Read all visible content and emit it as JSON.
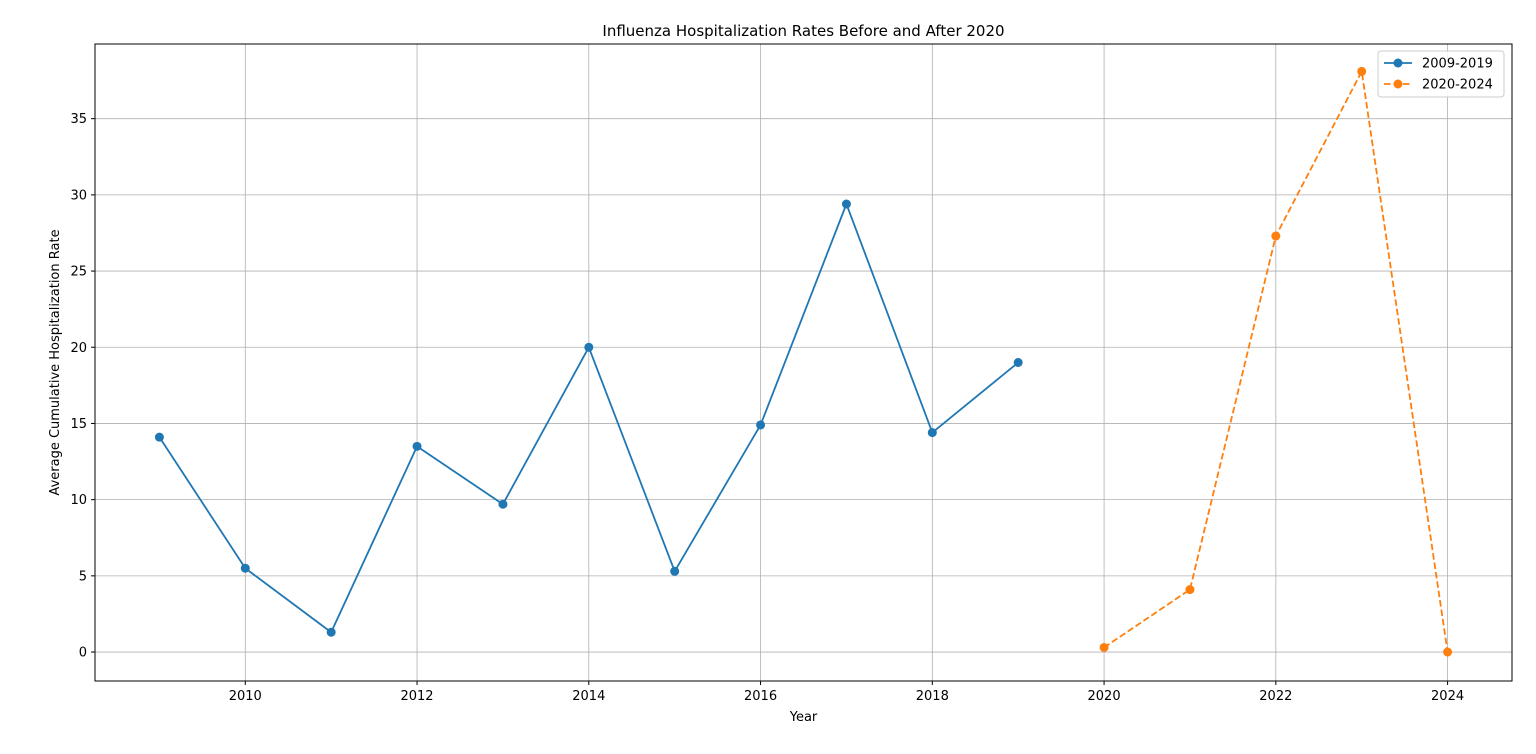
{
  "chart_data": {
    "type": "line",
    "title": "Influenza Hospitalization Rates Before and After 2020",
    "xlabel": "Year",
    "ylabel": "Average Cumulative Hospitalization Rate",
    "xlim": [
      2008.25,
      2024.75
    ],
    "ylim": [
      -1.9,
      39.9
    ],
    "xticks": [
      2010,
      2012,
      2014,
      2016,
      2018,
      2020,
      2022,
      2024
    ],
    "yticks": [
      0,
      5,
      10,
      15,
      20,
      25,
      30,
      35
    ],
    "grid": true,
    "legend_position": "top-right",
    "series": [
      {
        "name": "2009-2019",
        "color": "#1f77b4",
        "line_style": "solid",
        "marker": "circle",
        "x": [
          2009,
          2010,
          2011,
          2012,
          2013,
          2014,
          2015,
          2016,
          2017,
          2018,
          2019
        ],
        "values": [
          14.1,
          5.5,
          1.3,
          13.5,
          9.7,
          20.0,
          5.3,
          14.9,
          29.4,
          14.4,
          19.0
        ]
      },
      {
        "name": "2020-2024",
        "color": "#ff7f0e",
        "line_style": "dashed",
        "marker": "circle",
        "x": [
          2020,
          2021,
          2022,
          2023,
          2024
        ],
        "values": [
          0.3,
          4.1,
          27.3,
          38.1,
          0.0
        ]
      }
    ]
  }
}
